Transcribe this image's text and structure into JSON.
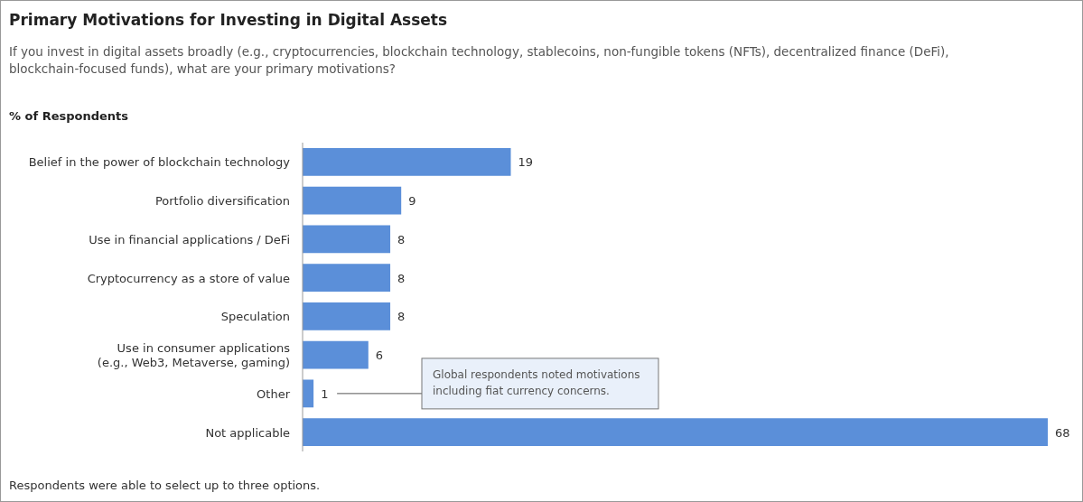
{
  "chart_data": {
    "type": "bar",
    "orientation": "horizontal",
    "title": "Primary Motivations for Investing in Digital Assets",
    "subtitle": "If you invest in digital assets broadly (e.g., cryptocurrencies, blockchain technology, stablecoins, non-fungible tokens (NFTs), decentralized finance (DeFi), blockchain-focused funds), what are your primary motivations?",
    "ylabel": "% of Respondents",
    "categories": [
      "Belief in the power of blockchain technology",
      "Portfolio diversification",
      "Use in financial applications / DeFi",
      "Cryptocurrency as a store of value",
      "Speculation",
      "Use in consumer applications\n(e.g., Web3, Metaverse, gaming)",
      "Other",
      "Not applicable"
    ],
    "values": [
      19,
      9,
      8,
      8,
      8,
      6,
      1,
      68
    ],
    "color": "#5b8fd9",
    "data_labels": true,
    "annotations": [
      "Global respondents noted motivations including fiat currency concerns.",
      "Respondents were able to select up to three options."
    ]
  }
}
